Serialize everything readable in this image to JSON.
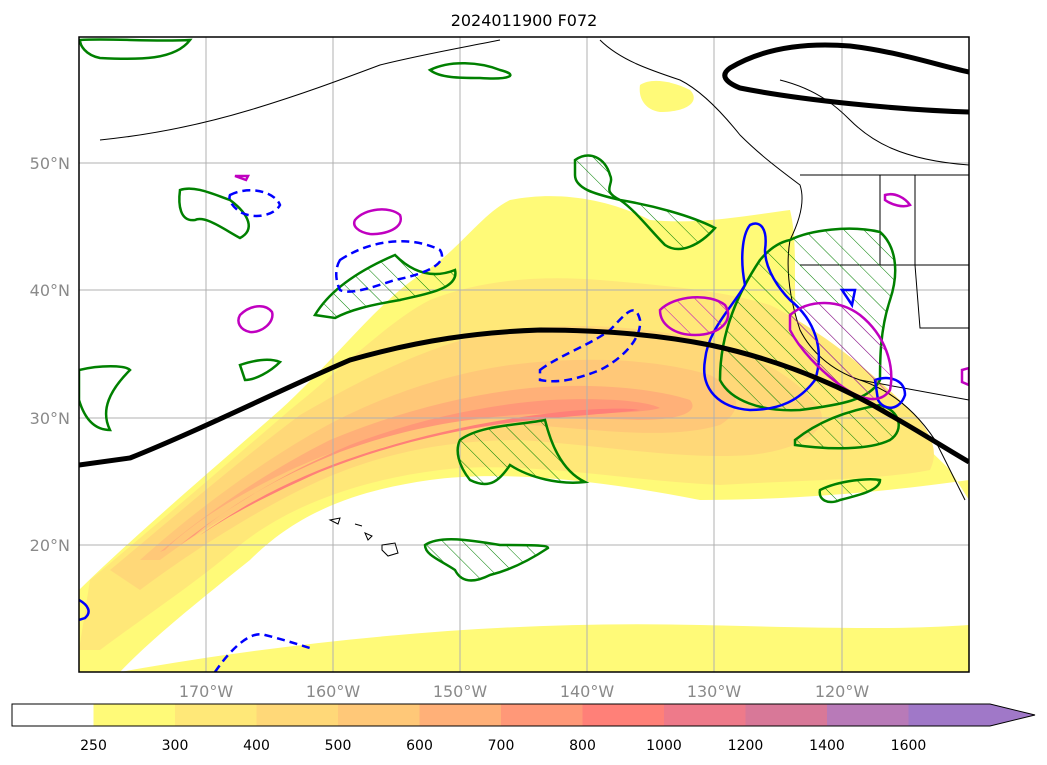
{
  "chart_data": {
    "type": "heatmap",
    "title": "2024011900 F072",
    "x_ticks": [
      "170°W",
      "160°W",
      "150°W",
      "140°W",
      "130°W",
      "120°W"
    ],
    "y_ticks": [
      "20°N",
      "30°N",
      "40°N",
      "50°N"
    ],
    "colorbar": {
      "levels": [
        "250",
        "300",
        "400",
        "500",
        "600",
        "700",
        "800",
        "1000",
        "1200",
        "1400",
        "1600"
      ],
      "colors": [
        "#ffffff",
        "#fffa78",
        "#ffe878",
        "#ffd878",
        "#ffc878",
        "#ffb078",
        "#ff9878",
        "#ff8078",
        "#ee7a8a",
        "#d87898",
        "#b87ab8",
        "#a078c8"
      ],
      "extend": "max"
    },
    "grid": true,
    "contour_colors": {
      "jet_axis": "#000000",
      "green": "#008000",
      "blue": "#0000ff",
      "magenta": "#c000c0"
    }
  }
}
